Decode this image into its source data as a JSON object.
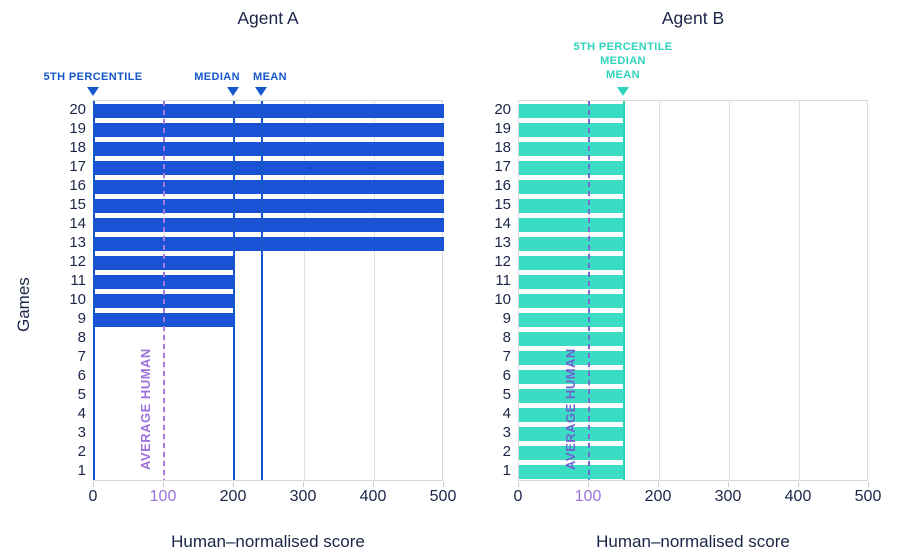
{
  "games_axis_label": "Games",
  "chart_data": [
    {
      "type": "bar",
      "orientation": "horizontal",
      "title": "Agent A",
      "xlabel": "Human–normalised score",
      "ylabel": "Games",
      "bar_color": "#1a52d6",
      "accent_color": "#1557cb",
      "grid": true,
      "legend": "none",
      "xlim": [
        0,
        500
      ],
      "x_ticks": [
        0,
        100,
        200,
        300,
        400,
        500
      ],
      "categories": [
        20,
        19,
        18,
        17,
        16,
        15,
        14,
        13,
        12,
        11,
        10,
        9,
        8,
        7,
        6,
        5,
        4,
        3,
        2,
        1
      ],
      "values": [
        500,
        500,
        500,
        500,
        500,
        500,
        500,
        500,
        200,
        200,
        200,
        200,
        0,
        0,
        0,
        0,
        0,
        0,
        0,
        0
      ],
      "stats": {
        "p5_value": 0,
        "median_value": 200,
        "mean_value": 240
      },
      "marker_labels": {
        "p5": "5TH PERCENTILE",
        "median": "MEDIAN",
        "mean": "MEAN"
      },
      "avg_human": {
        "label": "AVERAGE HUMAN",
        "value": 100,
        "text_color": "#9d72dc",
        "line_color": "#a47be0",
        "tick_color": "#9d72dc"
      }
    },
    {
      "type": "bar",
      "orientation": "horizontal",
      "title": "Agent B",
      "xlabel": "Human–normalised score",
      "ylabel": "Games",
      "bar_color": "#3adcc4",
      "accent_color": "#2fd3bc",
      "grid": true,
      "legend": "none",
      "xlim": [
        0,
        500
      ],
      "x_ticks": [
        0,
        100,
        200,
        300,
        400,
        500
      ],
      "categories": [
        20,
        19,
        18,
        17,
        16,
        15,
        14,
        13,
        12,
        11,
        10,
        9,
        8,
        7,
        6,
        5,
        4,
        3,
        2,
        1
      ],
      "values": [
        150,
        150,
        150,
        150,
        150,
        150,
        150,
        150,
        150,
        150,
        150,
        150,
        150,
        150,
        150,
        150,
        150,
        150,
        150,
        150
      ],
      "stats": {
        "p5_value": 150,
        "median_value": 150,
        "mean_value": 150
      },
      "marker_labels": {
        "p5": "5TH PERCENTILE",
        "median": "MEDIAN",
        "mean": "MEAN"
      },
      "avg_human": {
        "label": "AVERAGE HUMAN",
        "value": 100,
        "text_color": "#6f63d2",
        "line_color": "#7c6ad4",
        "tick_color": "#9d72dc"
      }
    }
  ]
}
